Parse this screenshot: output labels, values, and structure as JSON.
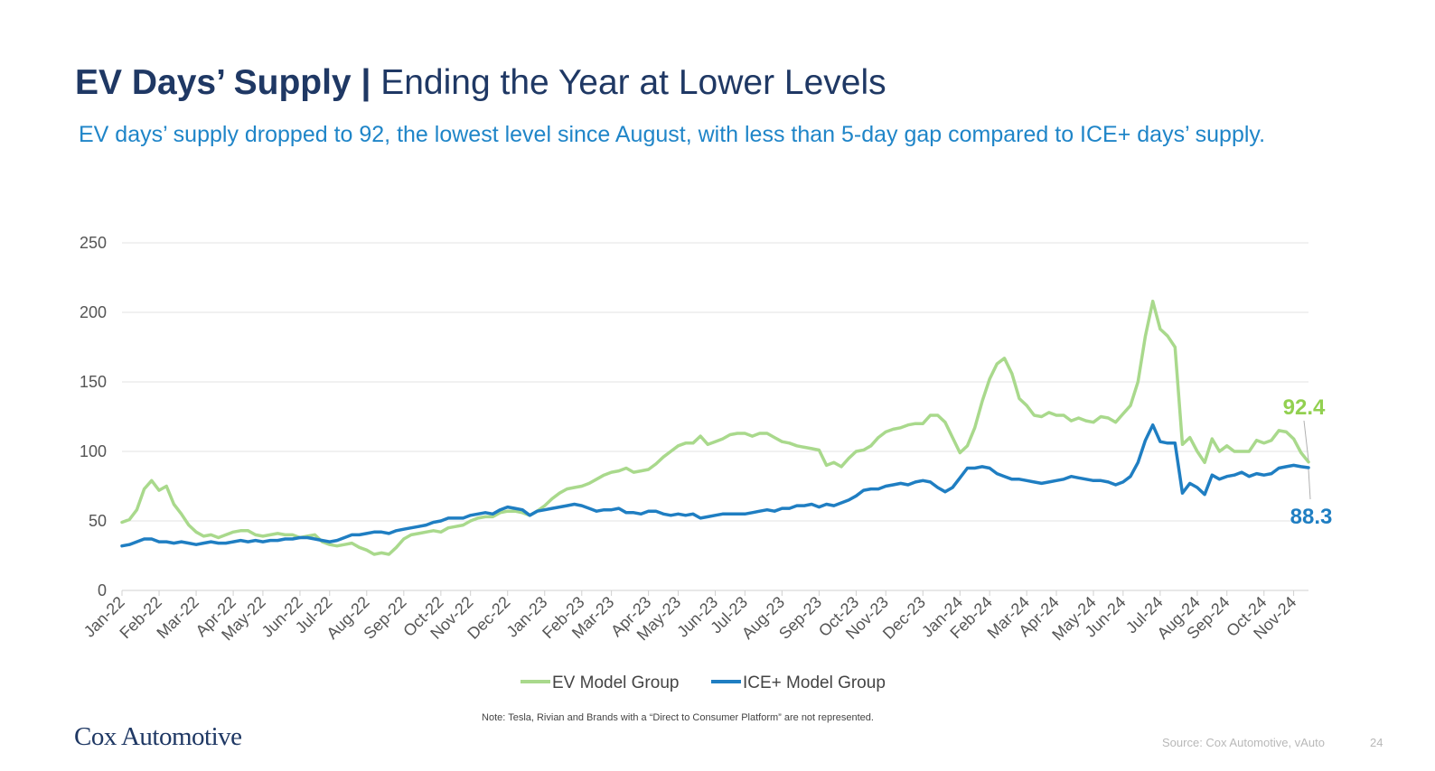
{
  "header": {
    "title_bold": "EV Days’ Supply",
    "title_separator": "|",
    "title_rest": "Ending the Year at Lower Levels",
    "subtitle": "EV days’ supply dropped to 92, the lowest level since August, with less than 5-day gap compared to ICE+ days’ supply."
  },
  "footer": {
    "note": "Note: Tesla, Rivian and Brands with a “Direct to Consumer Platform” are not represented.",
    "logo_text": "Cox Automotive",
    "source": "Source: Cox Automotive, vAuto",
    "page_number": "24"
  },
  "colors": {
    "ev": "#a9d98c",
    "ice": "#1f7ec2",
    "title": "#1f3864",
    "subtitle": "#1f85c8"
  },
  "chart_data": {
    "type": "line",
    "ylim": [
      0,
      250
    ],
    "yticks": [
      0,
      50,
      100,
      150,
      200,
      250
    ],
    "grid": true,
    "legend_position": "bottom",
    "x_tick_labels": [
      "Jan-22",
      "Feb-22",
      "Mar-22",
      "Apr-22",
      "May-22",
      "Jun-22",
      "Jul-22",
      "Aug-22",
      "Sep-22",
      "Oct-22",
      "Nov-22",
      "Dec-22",
      "Jan-23",
      "Feb-23",
      "Mar-23",
      "Apr-23",
      "May-23",
      "Jun-23",
      "Jul-23",
      "Aug-23",
      "Sep-23",
      "Oct-23",
      "Nov-23",
      "Dec-23",
      "Jan-24",
      "Feb-24",
      "Mar-24",
      "Apr-24",
      "May-24",
      "Jun-24",
      "Jul-24",
      "Aug-24",
      "Sep-24",
      "Oct-24",
      "Nov-24"
    ],
    "x_tick_week_index": [
      0,
      5,
      10,
      15,
      19,
      24,
      28,
      33,
      38,
      43,
      47,
      52,
      57,
      62,
      66,
      71,
      75,
      80,
      84,
      89,
      94,
      99,
      103,
      108,
      113,
      117,
      122,
      126,
      131,
      135,
      140,
      145,
      149,
      154,
      158
    ],
    "series": [
      {
        "name": "EV Model Group",
        "end_label": "92.4",
        "values": [
          49,
          51,
          58,
          73,
          79,
          72,
          75,
          62,
          55,
          47,
          42,
          39,
          40,
          38,
          40,
          42,
          43,
          43,
          40,
          39,
          40,
          41,
          40,
          40,
          38,
          39,
          40,
          35,
          33,
          32,
          33,
          34,
          31,
          29,
          26,
          27,
          26,
          31,
          37,
          40,
          41,
          42,
          43,
          42,
          45,
          46,
          47,
          50,
          52,
          53,
          53,
          56,
          57,
          57,
          56,
          54,
          57,
          61,
          66,
          70,
          73,
          74,
          75,
          77,
          80,
          83,
          85,
          86,
          88,
          85,
          86,
          87,
          91,
          96,
          100,
          104,
          106,
          106,
          111,
          105,
          107,
          109,
          112,
          113,
          113,
          111,
          113,
          113,
          110,
          107,
          106,
          104,
          103,
          102,
          101,
          90,
          92,
          89,
          95,
          100,
          101,
          104,
          110,
          114,
          116,
          117,
          119,
          120,
          120,
          126,
          126,
          121,
          110,
          99,
          104,
          117,
          136,
          152,
          163,
          167,
          156,
          138,
          133,
          126,
          125,
          128,
          126,
          126,
          122,
          124,
          122,
          121,
          125,
          124,
          121,
          127,
          133,
          150,
          183,
          208,
          188,
          183,
          175,
          105,
          110,
          100,
          92,
          109,
          100,
          104,
          100,
          100,
          100,
          108,
          106,
          108,
          115,
          114,
          109,
          99,
          92.4
        ]
      },
      {
        "name": "ICE+ Model Group",
        "end_label": "88.3",
        "values": [
          32,
          33,
          35,
          37,
          37,
          35,
          35,
          34,
          35,
          34,
          33,
          34,
          35,
          34,
          34,
          35,
          36,
          35,
          36,
          35,
          36,
          36,
          37,
          37,
          38,
          38,
          37,
          36,
          35,
          36,
          38,
          40,
          40,
          41,
          42,
          42,
          41,
          43,
          44,
          45,
          46,
          47,
          49,
          50,
          52,
          52,
          52,
          54,
          55,
          56,
          55,
          58,
          60,
          59,
          58,
          54,
          57,
          58,
          59,
          60,
          61,
          62,
          61,
          59,
          57,
          58,
          58,
          59,
          56,
          56,
          55,
          57,
          57,
          55,
          54,
          55,
          54,
          55,
          52,
          53,
          54,
          55,
          55,
          55,
          55,
          56,
          57,
          58,
          57,
          59,
          59,
          61,
          61,
          62,
          60,
          62,
          61,
          63,
          65,
          68,
          72,
          73,
          73,
          75,
          76,
          77,
          76,
          78,
          79,
          78,
          74,
          71,
          74,
          81,
          88,
          88,
          89,
          88,
          84,
          82,
          80,
          80,
          79,
          78,
          77,
          78,
          79,
          80,
          82,
          81,
          80,
          79,
          79,
          78,
          76,
          78,
          82,
          92,
          108,
          119,
          107,
          106,
          106,
          70,
          77,
          74,
          69,
          83,
          80,
          82,
          83,
          85,
          82,
          84,
          83,
          84,
          88,
          89,
          90,
          89,
          88.3
        ]
      }
    ]
  }
}
